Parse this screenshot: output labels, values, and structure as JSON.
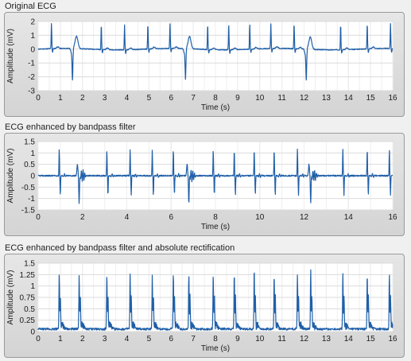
{
  "colors": {
    "trace": "#1f5fa8",
    "plot_bg": "#ffffff",
    "grid": "#dcdcdc",
    "panel": "#dadada"
  },
  "panels": [
    {
      "title": "Original ECG"
    },
    {
      "title": "ECG enhanced by bandpass filter"
    },
    {
      "title": "ECG enhanced by bandpass filter and absolute rectification"
    }
  ],
  "chart_data": [
    {
      "type": "line",
      "title": "Original ECG",
      "xlabel": "Time (s)",
      "ylabel": "Amplitude (mV)",
      "xlim": [
        0,
        16
      ],
      "ylim": [
        -3,
        2
      ],
      "xticks": [
        "0",
        "1",
        "2",
        "3",
        "4",
        "5",
        "6",
        "7",
        "8",
        "9",
        "10",
        "11",
        "12",
        "13",
        "14",
        "15",
        "16"
      ],
      "yticks": [
        "2",
        "1",
        "0",
        "-1",
        "-2",
        "-3"
      ],
      "grid": true,
      "beats": [
        0.6,
        1.55,
        2.85,
        3.9,
        4.95,
        5.95,
        6.65,
        7.65,
        8.6,
        9.55,
        10.5,
        11.55,
        12.1,
        13.65,
        14.85,
        15.9
      ],
      "inverted_beats": [
        1.55,
        6.65,
        12.1
      ],
      "baseline": 0,
      "r_peak_amplitude": 1.8,
      "inverted_amplitude": -2.2
    },
    {
      "type": "line",
      "title": "ECG enhanced by bandpass filter",
      "xlabel": "Time (s)",
      "ylabel": "Amplitude (mV)",
      "xlim": [
        0,
        16
      ],
      "ylim": [
        -1.5,
        1.5
      ],
      "xticks": [
        "0",
        "2",
        "4",
        "6",
        "8",
        "10",
        "12",
        "14",
        "16"
      ],
      "yticks": [
        "1.5",
        "1",
        "0.5",
        "0",
        "-0.5",
        "-1",
        "-1.5"
      ],
      "grid": true,
      "beats": [
        0.95,
        1.85,
        3.1,
        4.15,
        5.15,
        6.1,
        6.8,
        7.9,
        8.85,
        9.75,
        10.65,
        11.7,
        12.3,
        13.75,
        14.85,
        15.85
      ],
      "inverted_beats": [
        1.85,
        6.8,
        12.3
      ],
      "r_peak_amplitude": 1.15,
      "inverted_amplitude": -1.2
    },
    {
      "type": "line",
      "title": "ECG enhanced by bandpass filter and absolute rectification",
      "xlabel": "Time (s)",
      "ylabel": "Amplitude (mV)",
      "xlim": [
        0,
        16
      ],
      "ylim": [
        0,
        1.5
      ],
      "xticks": [
        "0",
        "1",
        "2",
        "3",
        "4",
        "5",
        "6",
        "7",
        "8",
        "9",
        "10",
        "11",
        "12",
        "13",
        "14",
        "15",
        "16"
      ],
      "yticks": [
        "1.5",
        "1.25",
        "1",
        "0.75",
        "0.5",
        "0.25",
        "0"
      ],
      "grid": true,
      "beats": [
        0.95,
        1.85,
        3.1,
        4.15,
        5.15,
        6.1,
        6.8,
        7.9,
        8.85,
        9.75,
        10.65,
        11.7,
        12.3,
        13.75,
        14.85,
        15.85
      ],
      "r_peak_amplitude": 1.2,
      "tall_beats": [
        9.75,
        12.3
      ],
      "tall_amplitude": 1.32
    }
  ]
}
